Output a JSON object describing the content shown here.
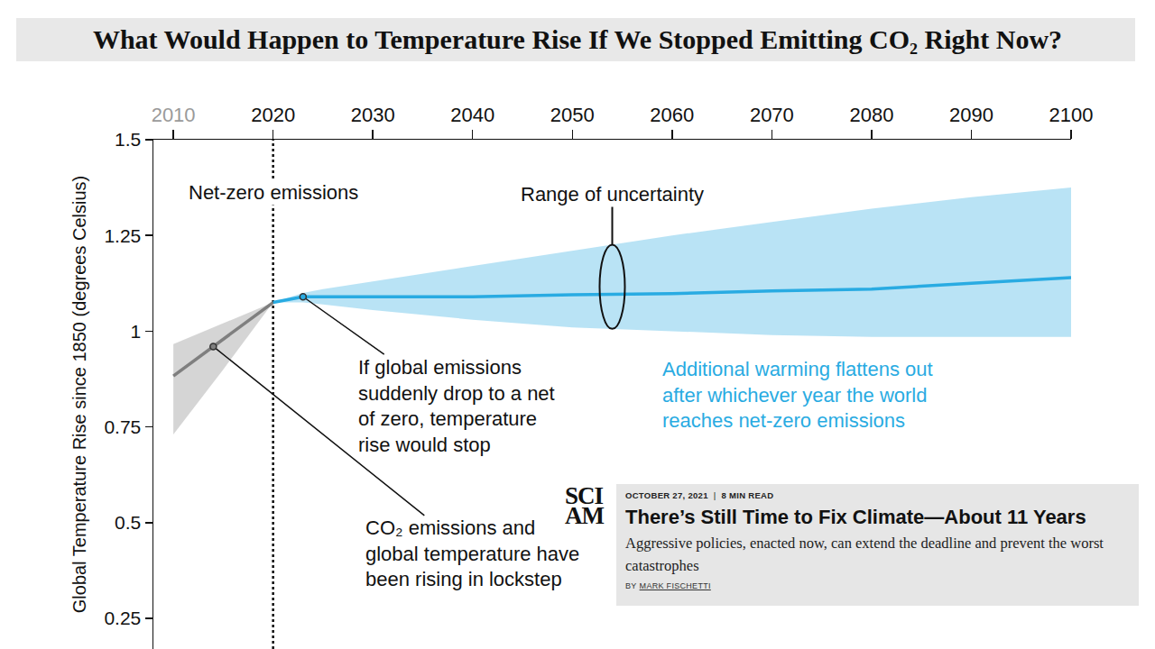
{
  "chart_data": {
    "type": "line",
    "title": "What Would Happen to Temperature Rise If We Stopped Emitting CO₂ Right Now?",
    "y_label": "Global Temperature Rise since 1850 (degrees Celsius)",
    "xlim": [
      2008,
      2100
    ],
    "xticks": [
      2010,
      2020,
      2030,
      2040,
      2050,
      2060,
      2070,
      2080,
      2090,
      2100
    ],
    "ylim": [
      0.17,
      1.5
    ],
    "yticks": [
      0.25,
      0.5,
      0.75,
      1,
      1.25,
      1.5
    ],
    "grid": false,
    "series": [
      {
        "color": "#7f7f7f",
        "x": [
          2010,
          2015,
          2020
        ],
        "values": [
          0.883,
          0.979,
          1.075
        ],
        "lower": [
          0.73,
          0.9,
          1.075
        ],
        "upper": [
          0.966,
          1.02,
          1.075
        ]
      },
      {
        "color": "#29abe2",
        "x": [
          2020,
          2023,
          2025,
          2030,
          2040,
          2050,
          2060,
          2070,
          2080,
          2090,
          2100
        ],
        "values": [
          1.075,
          1.09,
          1.09,
          1.09,
          1.09,
          1.095,
          1.098,
          1.105,
          1.11,
          1.125,
          1.14
        ],
        "lower": [
          1.075,
          1.075,
          1.07,
          1.055,
          1.03,
          1.01,
          1.0,
          0.99,
          0.985,
          0.985,
          0.985
        ],
        "upper": [
          1.075,
          1.1,
          1.11,
          1.13,
          1.17,
          1.21,
          1.25,
          1.285,
          1.32,
          1.35,
          1.375
        ]
      }
    ],
    "vline": {
      "x": 2020,
      "label": "Net-zero emissions"
    },
    "band_label": "Range of uncertainty",
    "notes": [
      {
        "lines": [
          "If global emissions",
          "suddenly drop to a net",
          "of zero, temperature",
          "rise would stop"
        ],
        "x": 2023,
        "y": 1.09
      },
      {
        "lines": [
          "CO₂ emissions and",
          "global temperature have",
          "been rising in lockstep"
        ],
        "x": 2014,
        "y": 0.96
      }
    ],
    "caption": [
      "Additional warming flattens out",
      "after whichever year the world",
      "reaches net-zero emissions"
    ]
  },
  "inset": {
    "logo": [
      "SCI",
      "AM"
    ],
    "date": "OCTOBER 27, 2021",
    "separator": "|",
    "read_time": "8 MIN READ",
    "headline": "There’s Still Time to Fix Climate—About 11 Years",
    "subhead": "Aggressive policies, enacted now, can extend the deadline and prevent the worst catastrophes",
    "byline": "BY",
    "author": "MARK FISCHETTI"
  }
}
